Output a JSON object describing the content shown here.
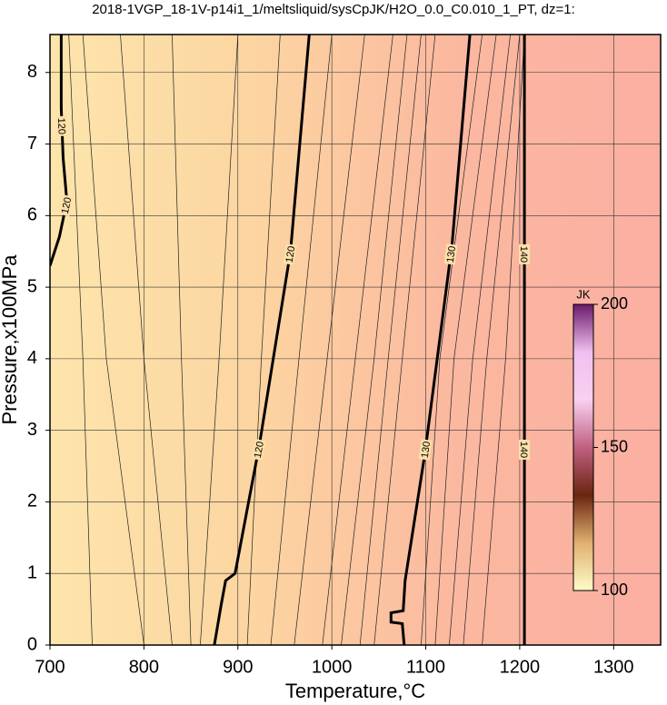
{
  "chart_data": {
    "type": "contour",
    "title": "2018-1VGP_18-1V-p14i1_1/meltsliquid/sysCpJK/H2O_0.0_C0.010_1_PT, dz=1:",
    "x_label": "Temperature,°C",
    "y_label": "Pressure,x100MPa",
    "xlim": [
      700,
      1350
    ],
    "ylim": [
      0,
      8.53
    ],
    "xticks": [
      700,
      800,
      900,
      1000,
      1100,
      1200,
      1300
    ],
    "yticks": [
      0,
      1,
      2,
      3,
      4,
      5,
      6,
      7,
      8
    ],
    "grid": true,
    "fill_colors": [
      "#fde5ab",
      "#fcd5a1",
      "#fbb8a0",
      "#fbafa2"
    ],
    "contours": [
      {
        "level": 120,
        "x": [
          712,
          712,
          714,
          718,
          710,
          700
        ],
        "y": [
          8.53,
          7.5,
          6.8,
          6.2,
          5.7,
          5.3
        ]
      },
      {
        "level": 120,
        "x": [
          976,
          956,
          923,
          897,
          887,
          882,
          875
        ],
        "y": [
          8.53,
          5.5,
          2.8,
          1.0,
          0.9,
          0.55,
          0
        ]
      },
      {
        "level": 130,
        "x": [
          1147,
          1128,
          1099,
          1078,
          1076,
          1063,
          1063,
          1075,
          1077
        ],
        "y": [
          8.53,
          5.6,
          2.67,
          0.9,
          0.48,
          0.45,
          0.32,
          0.3,
          0
        ]
      },
      {
        "level": 140,
        "x": [
          1205,
          1205
        ],
        "y": [
          8.53,
          0
        ]
      }
    ],
    "thin_contours": [
      {
        "x": [
          745,
          735,
          720
        ],
        "y": [
          0,
          4,
          8.53
        ]
      },
      {
        "x": [
          800,
          760,
          735
        ],
        "y": [
          0,
          4,
          8.53
        ]
      },
      {
        "x": [
          830,
          800,
          775
        ],
        "y": [
          0,
          4,
          8.53
        ]
      },
      {
        "x": [
          850,
          840,
          830
        ],
        "y": [
          0,
          4,
          8.53
        ]
      },
      {
        "x": [
          860,
          880,
          900
        ],
        "y": [
          0,
          4,
          8.53
        ]
      },
      {
        "x": [
          910,
          925,
          945
        ],
        "y": [
          0,
          4,
          8.53
        ]
      },
      {
        "x": [
          935,
          965,
          1000
        ],
        "y": [
          0,
          4,
          8.53
        ]
      },
      {
        "x": [
          960,
          995,
          1035
        ],
        "y": [
          0,
          4,
          8.53
        ]
      },
      {
        "x": [
          990,
          1025,
          1065
        ],
        "y": [
          0,
          4,
          8.53
        ]
      },
      {
        "x": [
          1010,
          1045,
          1080
        ],
        "y": [
          0,
          4,
          8.53
        ]
      },
      {
        "x": [
          1030,
          1060,
          1095
        ],
        "y": [
          0,
          4,
          8.53
        ]
      },
      {
        "x": [
          1045,
          1075,
          1110
        ],
        "y": [
          0,
          4,
          8.53
        ]
      },
      {
        "x": [
          1095,
          1115,
          1160
        ],
        "y": [
          0,
          4,
          8.53
        ]
      },
      {
        "x": [
          1110,
          1130,
          1175
        ],
        "y": [
          0,
          4,
          8.53
        ]
      },
      {
        "x": [
          1125,
          1150,
          1190
        ],
        "y": [
          0,
          4,
          8.53
        ]
      },
      {
        "x": [
          1140,
          1165,
          1200
        ],
        "y": [
          0,
          4,
          8.53
        ]
      },
      {
        "x": [
          1160,
          1185,
          1205
        ],
        "y": [
          0,
          4,
          8.53
        ]
      }
    ],
    "colorbar": {
      "label": "JK",
      "lim": [
        100,
        200
      ],
      "ticks": [
        100,
        150,
        200
      ],
      "colors": [
        "#fdfcc8",
        "#e0b070",
        "#6a2510",
        "#c06080",
        "#f8d0f0",
        "#f0c0f0",
        "#6a1a6a"
      ]
    }
  }
}
